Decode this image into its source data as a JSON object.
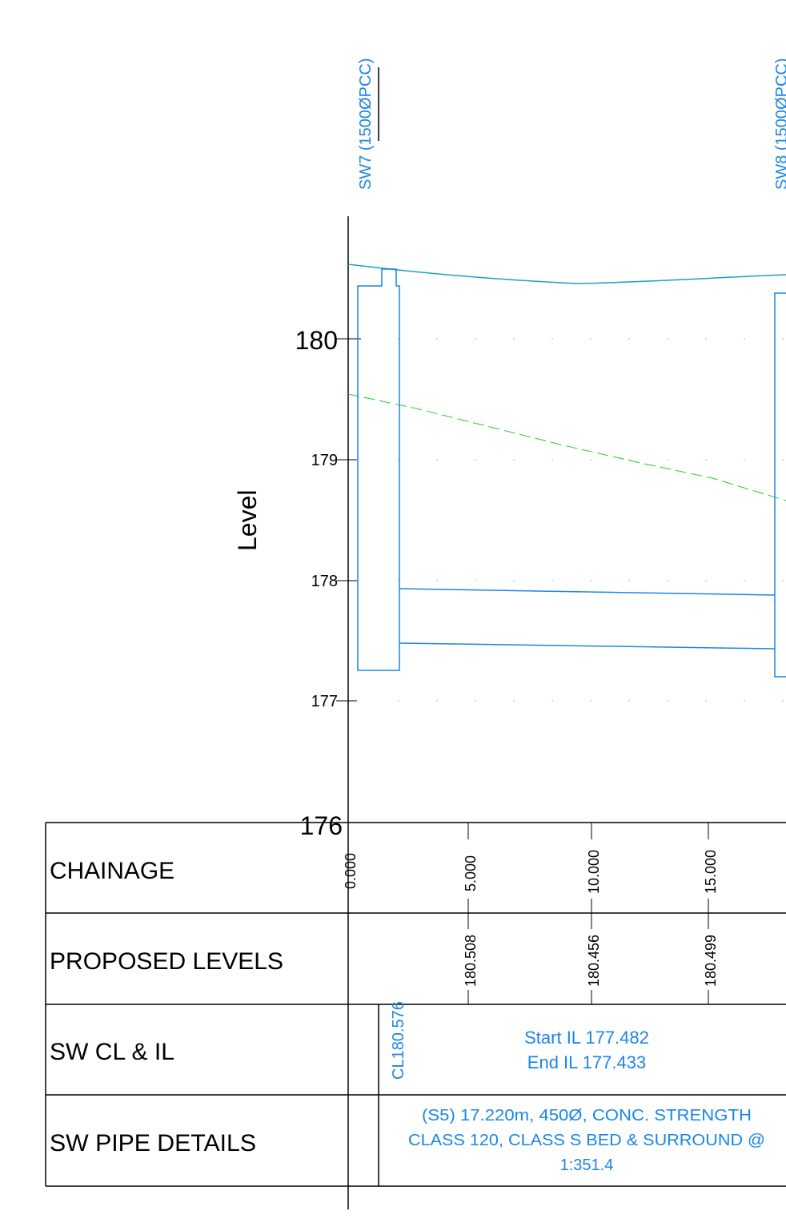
{
  "colors": {
    "structure": "#1a86e8",
    "ground": "#1aa1c2",
    "design": "#22cc22",
    "axis": "#000000",
    "grid_dot": "#bbbbbb",
    "table": "#000000"
  },
  "manholes": {
    "left_label": "SW7 (1500ØPCC)",
    "right_label": "SW8 (1500ØPCC)"
  },
  "axis": {
    "ylabel": "Level",
    "ticks": [
      "180",
      "179",
      "178",
      "177",
      "176"
    ]
  },
  "table": {
    "rows": {
      "chainage": "CHAINAGE",
      "proposed": "PROPOSED LEVELS",
      "cl_il": "SW CL & IL",
      "pipe": "SW PIPE DETAILS"
    },
    "chainage_values": [
      "0.000",
      "5.000",
      "10.000",
      "15.000"
    ],
    "proposed_values": [
      "180.508",
      "180.456",
      "180.499"
    ],
    "cover_level": "CL180.576",
    "start_il": "Start IL 177.482",
    "end_il": "End IL 177.433",
    "pipe_line1": "(S5) 17.220m, 450Ø, CONC. STRENGTH",
    "pipe_line2": "CLASS 120, CLASS S BED & SURROUND @",
    "pipe_line3": "1:351.4"
  },
  "chart_data": {
    "type": "line",
    "xlabel": "",
    "ylabel": "Level",
    "xlim": [
      0,
      18.5
    ],
    "ylim": [
      176,
      180.9
    ],
    "series": [
      {
        "x": [
          0,
          2,
          7,
          10,
          15,
          18
        ],
        "y": [
          180.6,
          180.55,
          180.48,
          180.46,
          180.49,
          180.52
        ]
      },
      {
        "x": [
          0,
          5,
          10,
          15,
          18
        ],
        "y": [
          179.55,
          179.33,
          179.12,
          178.9,
          178.68
        ]
      },
      {
        "x": [
          2.2,
          18.5
        ],
        "y": [
          177.92,
          177.88
        ]
      },
      {
        "x": [
          2.2,
          18.5
        ],
        "y": [
          177.48,
          177.44
        ]
      }
    ]
  }
}
